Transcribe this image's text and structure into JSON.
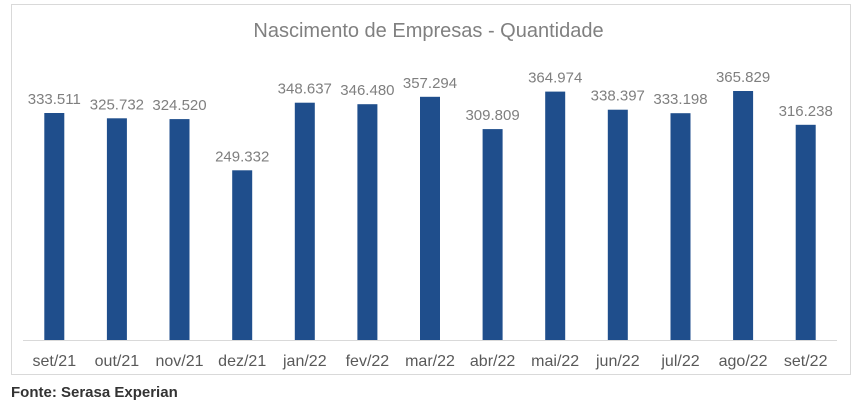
{
  "chart_data": {
    "type": "bar",
    "title": "Nascimento de Empresas - Quantidade",
    "categories": [
      "set/21",
      "out/21",
      "nov/21",
      "dez/21",
      "jan/22",
      "fev/22",
      "mar/22",
      "abr/22",
      "mai/22",
      "jun/22",
      "jul/22",
      "ago/22",
      "set/22"
    ],
    "values": [
      333511,
      325732,
      324520,
      249332,
      348637,
      346480,
      357294,
      309809,
      364974,
      338397,
      333198,
      365829,
      316238
    ],
    "value_labels": [
      "333.511",
      "325.732",
      "324.520",
      "249.332",
      "348.637",
      "346.480",
      "357.294",
      "309.809",
      "364.974",
      "338.397",
      "333.198",
      "365.829",
      "316.238"
    ],
    "ylim": [
      0,
      400000
    ],
    "grid": false,
    "legend": "none",
    "bar_color": "#1F4E8C",
    "label_color": "#7f7f7f"
  },
  "footer": {
    "source": "Fonte: Serasa Experian"
  }
}
